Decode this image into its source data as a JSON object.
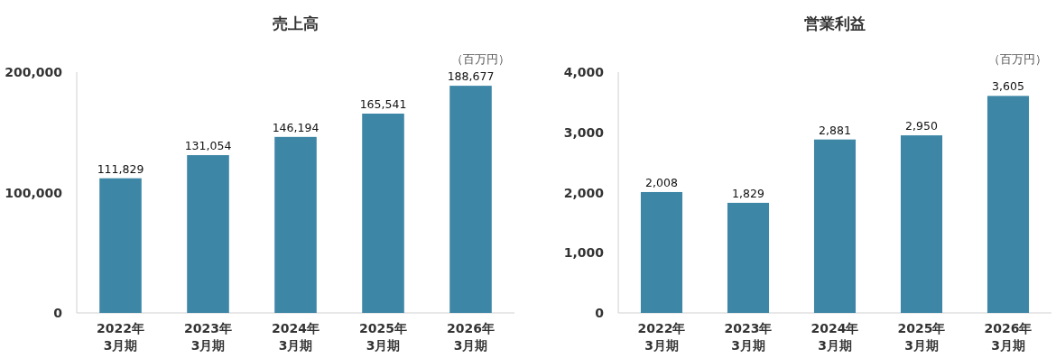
{
  "chart_data": [
    {
      "type": "bar",
      "title": "売上高",
      "categories": [
        "2022年\n3月期",
        "2023年\n3月期",
        "2024年\n3月期",
        "2025年\n3月期",
        "2026年\n3月期"
      ],
      "values": [
        111829,
        131054,
        146194,
        165541,
        188677
      ],
      "value_labels": [
        "111,829",
        "131,054",
        "146,194",
        "165,541",
        "188,677"
      ],
      "color": "#3d86a6",
      "ylim": [
        0,
        200000
      ],
      "yticks": [
        0,
        {
          "value": 100000,
          "label": "100,000"
        },
        {
          "value": 200000,
          "label": "200,000"
        }
      ],
      "annotations": [
        "（百万円）"
      ]
    },
    {
      "type": "bar",
      "title": "営業利益",
      "categories": [
        "2022年\n3月期",
        "2023年\n3月期",
        "2024年\n3月期",
        "2025年\n3月期",
        "2026年\n3月期"
      ],
      "values": [
        2008,
        1829,
        2881,
        2950,
        3605
      ],
      "value_labels": [
        "2,008",
        "1,829",
        "2,881",
        "2,950",
        "3,605"
      ],
      "color": "#3d86a6",
      "ylim": [
        0,
        4000
      ],
      "yticks": [
        0,
        {
          "value": 1000,
          "label": "1,000"
        },
        {
          "value": 2000,
          "label": "2,000"
        },
        {
          "value": 3000,
          "label": "3,000"
        },
        {
          "value": 4000,
          "label": "4,000"
        }
      ],
      "annotations": [
        "（百万円）"
      ]
    }
  ]
}
